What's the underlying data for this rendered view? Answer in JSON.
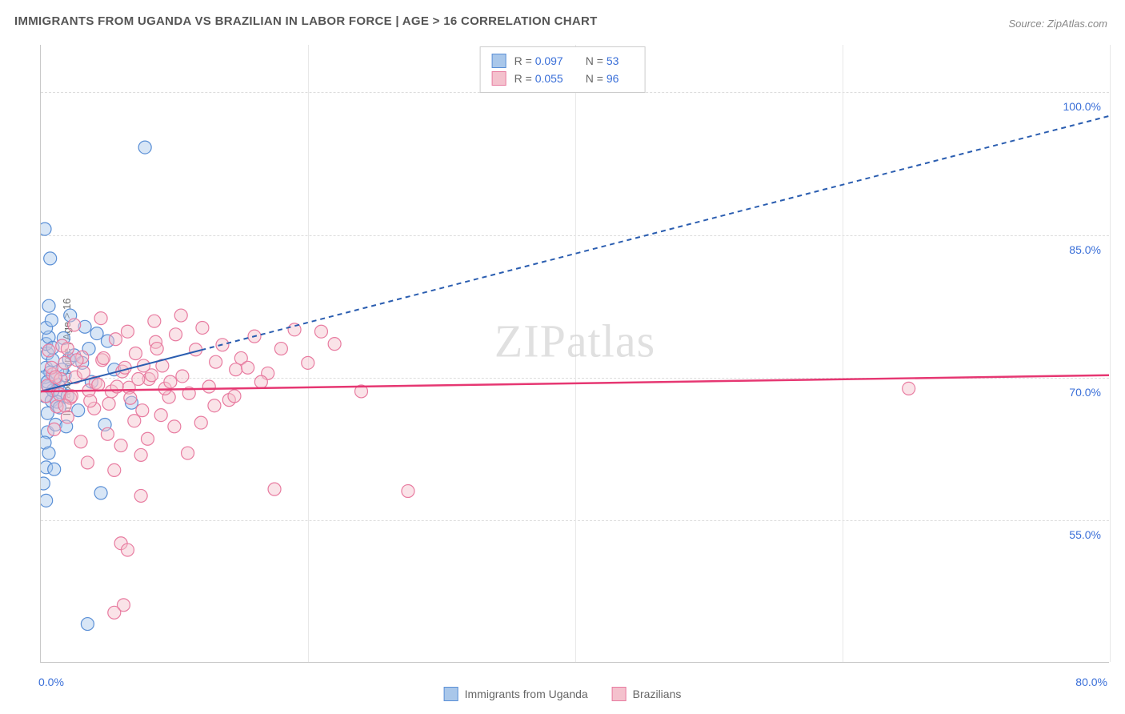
{
  "title": "IMMIGRANTS FROM UGANDA VS BRAZILIAN IN LABOR FORCE | AGE > 16 CORRELATION CHART",
  "source": "Source: ZipAtlas.com",
  "y_axis_title": "In Labor Force | Age > 16",
  "watermark": "ZIPatlas",
  "chart": {
    "type": "scatter",
    "xlim": [
      0,
      80
    ],
    "ylim": [
      40,
      105
    ],
    "y_ticks": [
      55,
      70,
      85,
      100
    ],
    "y_tick_labels": [
      "55.0%",
      "70.0%",
      "85.0%",
      "100.0%"
    ],
    "x_ticks": [
      0,
      20,
      40,
      60,
      80
    ],
    "x_min_label": "0.0%",
    "x_max_label": "80.0%",
    "background_color": "#ffffff",
    "grid_color": "#dddddd",
    "axis_color": "#c8c8c8",
    "tick_label_color": "#3a6fd8",
    "marker_radius": 8,
    "marker_opacity": 0.45,
    "series": [
      {
        "name": "Immigrants from Uganda",
        "color_fill": "#a9c7ea",
        "color_stroke": "#5a8fd6",
        "line_color": "#2a5db0",
        "line_dash": "6,5",
        "line_width": 2,
        "solid_segment_xmax": 12,
        "R": "0.097",
        "N": "53",
        "trend": {
          "x1": 0,
          "y1": 68.5,
          "x2": 80,
          "y2": 97.5
        },
        "points": [
          [
            0.3,
            68
          ],
          [
            0.4,
            71
          ],
          [
            0.6,
            69
          ],
          [
            0.5,
            72.5
          ],
          [
            0.8,
            67.5
          ],
          [
            0.4,
            73.5
          ],
          [
            0.7,
            70.5
          ],
          [
            1.1,
            69.8
          ],
          [
            0.5,
            66.2
          ],
          [
            0.9,
            71.8
          ],
          [
            1.3,
            69.2
          ],
          [
            0.6,
            74.2
          ],
          [
            1.5,
            68.4
          ],
          [
            0.9,
            73.1
          ],
          [
            1.8,
            70.2
          ],
          [
            2.1,
            71.9
          ],
          [
            1.2,
            67.4
          ],
          [
            0.4,
            75.2
          ],
          [
            2.5,
            72.3
          ],
          [
            1.7,
            74.1
          ],
          [
            3.1,
            71.5
          ],
          [
            0.8,
            76.0
          ],
          [
            2.0,
            68.0
          ],
          [
            3.6,
            73.0
          ],
          [
            0.5,
            64.2
          ],
          [
            1.1,
            65.0
          ],
          [
            0.3,
            63.1
          ],
          [
            1.4,
            66.8
          ],
          [
            0.4,
            60.5
          ],
          [
            1.9,
            64.8
          ],
          [
            4.2,
            74.6
          ],
          [
            5.5,
            70.8
          ],
          [
            0.6,
            62.0
          ],
          [
            2.8,
            66.5
          ],
          [
            0.2,
            58.8
          ],
          [
            3.3,
            75.3
          ],
          [
            0.3,
            85.6
          ],
          [
            0.7,
            82.5
          ],
          [
            6.8,
            67.3
          ],
          [
            4.8,
            65.0
          ],
          [
            0.4,
            57.0
          ],
          [
            7.8,
            94.2
          ],
          [
            5.0,
            73.8
          ],
          [
            1.0,
            60.3
          ],
          [
            0.6,
            77.5
          ],
          [
            2.2,
            76.5
          ],
          [
            0.3,
            70.0
          ],
          [
            1.6,
            70.8
          ],
          [
            0.9,
            68.6
          ],
          [
            3.8,
            69.5
          ],
          [
            4.5,
            57.8
          ],
          [
            3.5,
            44.0
          ],
          [
            0.5,
            69.5
          ]
        ]
      },
      {
        "name": "Brazilians",
        "color_fill": "#f4c1cd",
        "color_stroke": "#e87ba0",
        "line_color": "#e63772",
        "line_dash": "none",
        "line_width": 2.5,
        "solid_segment_xmax": 80,
        "R": "0.055",
        "N": "96",
        "trend": {
          "x1": 0,
          "y1": 68.5,
          "x2": 80,
          "y2": 70.2
        },
        "points": [
          [
            0.5,
            69.1
          ],
          [
            0.9,
            70.3
          ],
          [
            1.4,
            68.2
          ],
          [
            1.8,
            71.5
          ],
          [
            2.2,
            67.8
          ],
          [
            2.6,
            70.0
          ],
          [
            3.1,
            72.1
          ],
          [
            3.6,
            68.6
          ],
          [
            0.8,
            71.0
          ],
          [
            1.2,
            66.9
          ],
          [
            1.6,
            73.3
          ],
          [
            4.1,
            69.4
          ],
          [
            4.6,
            71.8
          ],
          [
            5.1,
            67.2
          ],
          [
            5.6,
            74.0
          ],
          [
            6.1,
            70.6
          ],
          [
            6.6,
            68.9
          ],
          [
            7.1,
            72.5
          ],
          [
            7.6,
            66.5
          ],
          [
            8.1,
            69.8
          ],
          [
            8.6,
            73.7
          ],
          [
            9.1,
            71.2
          ],
          [
            9.6,
            67.9
          ],
          [
            10.1,
            74.5
          ],
          [
            10.6,
            70.1
          ],
          [
            11.1,
            68.3
          ],
          [
            11.6,
            72.9
          ],
          [
            12.1,
            75.2
          ],
          [
            12.6,
            69.0
          ],
          [
            13.1,
            71.6
          ],
          [
            13.6,
            73.4
          ],
          [
            14.1,
            67.6
          ],
          [
            14.6,
            70.8
          ],
          [
            1.0,
            64.5
          ],
          [
            2.0,
            65.8
          ],
          [
            3.0,
            63.2
          ],
          [
            4.0,
            66.7
          ],
          [
            5.0,
            64.0
          ],
          [
            6.0,
            62.8
          ],
          [
            7.0,
            65.4
          ],
          [
            8.0,
            63.5
          ],
          [
            9.0,
            66.0
          ],
          [
            10.0,
            64.8
          ],
          [
            11.0,
            62.0
          ],
          [
            12.0,
            65.2
          ],
          [
            2.5,
            75.5
          ],
          [
            4.5,
            76.2
          ],
          [
            6.5,
            74.8
          ],
          [
            8.5,
            75.9
          ],
          [
            10.5,
            76.5
          ],
          [
            3.5,
            61.0
          ],
          [
            5.5,
            60.2
          ],
          [
            7.5,
            61.8
          ],
          [
            15.0,
            72.0
          ],
          [
            16.0,
            74.3
          ],
          [
            17.0,
            70.4
          ],
          [
            18.0,
            73.0
          ],
          [
            19.0,
            75.0
          ],
          [
            20.0,
            71.5
          ],
          [
            21.0,
            74.8
          ],
          [
            22.0,
            73.5
          ],
          [
            27.5,
            58.0
          ],
          [
            7.5,
            57.5
          ],
          [
            6.0,
            52.5
          ],
          [
            6.5,
            51.8
          ],
          [
            6.2,
            46.0
          ],
          [
            5.5,
            45.2
          ],
          [
            17.5,
            58.2
          ],
          [
            65.0,
            68.8
          ],
          [
            24.0,
            68.5
          ],
          [
            1.5,
            69.8
          ],
          [
            2.3,
            68.0
          ],
          [
            3.2,
            70.5
          ],
          [
            4.3,
            69.2
          ],
          [
            5.3,
            68.5
          ],
          [
            6.3,
            71.0
          ],
          [
            7.3,
            69.8
          ],
          [
            8.3,
            70.2
          ],
          [
            9.3,
            68.8
          ],
          [
            1.8,
            67.0
          ],
          [
            2.7,
            71.8
          ],
          [
            3.7,
            67.5
          ],
          [
            4.7,
            72.0
          ],
          [
            5.7,
            69.0
          ],
          [
            6.7,
            67.8
          ],
          [
            7.7,
            71.2
          ],
          [
            8.7,
            73.0
          ],
          [
            9.7,
            69.5
          ],
          [
            0.6,
            72.8
          ],
          [
            1.1,
            70.0
          ],
          [
            0.4,
            68.0
          ],
          [
            13.0,
            67.0
          ],
          [
            14.5,
            68.0
          ],
          [
            16.5,
            69.5
          ],
          [
            15.5,
            71.0
          ],
          [
            2.0,
            73.0
          ]
        ]
      }
    ]
  },
  "legend_bottom": [
    {
      "label": "Immigrants from Uganda",
      "fill": "#a9c7ea",
      "stroke": "#5a8fd6"
    },
    {
      "label": "Brazilians",
      "fill": "#f4c1cd",
      "stroke": "#e87ba0"
    }
  ]
}
